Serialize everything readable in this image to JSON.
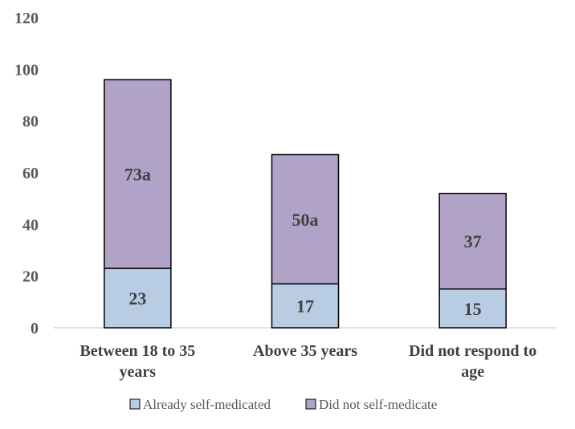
{
  "chart_data": {
    "type": "bar",
    "stacked": true,
    "categories": [
      [
        "Between 18 to 35",
        "years"
      ],
      [
        "Above 35 years"
      ],
      [
        "Did not respond to",
        "age"
      ]
    ],
    "series": [
      {
        "name": "Already self-medicated",
        "color": "#b8cde4",
        "values": [
          23,
          17,
          15
        ],
        "data_labels": [
          "23",
          "17",
          "15"
        ]
      },
      {
        "name": "Did not self-medicate",
        "color": "#b1a2c8",
        "values": [
          73,
          50,
          37
        ],
        "data_labels": [
          "73a",
          "50a",
          "37"
        ]
      }
    ],
    "ylim": [
      0,
      120
    ],
    "yticks": [
      0,
      20,
      40,
      60,
      80,
      100,
      120
    ],
    "grid": false,
    "legend_position": "bottom",
    "title": "",
    "xlabel": "",
    "ylabel": ""
  }
}
